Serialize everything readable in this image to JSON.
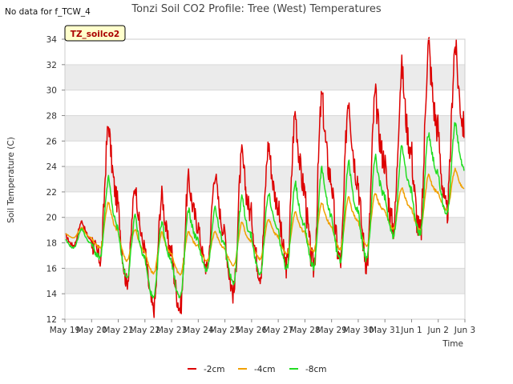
{
  "header": {
    "no_data_note": "No data for f_TCW_4",
    "title": "Tonzi Soil CO2 Profile: Tree (West) Temperatures",
    "badge": "TZ_soilco2"
  },
  "colors": {
    "background_band": "#ebebeb",
    "gridline": "#d9d9d9",
    "axis": "#888888",
    "badge_fill": "#ffffcc",
    "badge_border": "#000000",
    "badge_text": "#aa0000"
  },
  "chart_data": {
    "type": "line",
    "title": "Tonzi Soil CO2 Profile: Tree (West) Temperatures",
    "xlabel": "Time",
    "ylabel": "Soil Temperature (C)",
    "ylim": [
      12,
      34
    ],
    "yticks": [
      12,
      14,
      16,
      18,
      20,
      22,
      24,
      26,
      28,
      30,
      32,
      34
    ],
    "x_tick_labels": [
      "May 19",
      "May 20",
      "May 21",
      "May 22",
      "May 23",
      "May 24",
      "May 25",
      "May 26",
      "May 27",
      "May 28",
      "May 29",
      "May 30",
      "May 31",
      "Jun 1",
      "Jun 2",
      "Jun 3"
    ],
    "xlim_days": [
      0,
      15
    ],
    "grid": true,
    "legend_placement": "bottom-center",
    "series": [
      {
        "name": "-2cm",
        "color": "#dd0000",
        "daily_min": [
          17.8,
          16.8,
          14.9,
          12.8,
          12.9,
          16.0,
          14.1,
          15.6,
          16.2,
          16.1,
          16.5,
          16.5,
          19.3,
          18.6,
          20.3
        ],
        "daily_max": [
          19.7,
          27.3,
          22.5,
          21.8,
          23.0,
          23.5,
          24.9,
          25.8,
          28.3,
          29.5,
          29.6,
          29.6,
          31.8,
          33.7,
          33.6
        ]
      },
      {
        "name": "-4cm",
        "color": "#f0a000",
        "daily_min": [
          18.4,
          17.6,
          16.6,
          15.6,
          15.5,
          16.6,
          16.2,
          16.7,
          17.1,
          17.3,
          17.5,
          17.8,
          19.1,
          19.0,
          20.6
        ],
        "daily_max": [
          19.2,
          21.2,
          19.1,
          18.8,
          18.9,
          18.9,
          19.6,
          19.9,
          20.4,
          21.2,
          21.6,
          21.9,
          22.4,
          23.3,
          23.8
        ]
      },
      {
        "name": "-8cm",
        "color": "#22dd22",
        "daily_min": [
          17.6,
          16.8,
          15.2,
          13.6,
          13.6,
          15.8,
          14.9,
          15.5,
          16.0,
          16.1,
          16.6,
          16.7,
          18.5,
          18.7,
          20.2
        ],
        "daily_max": [
          19.1,
          23.1,
          20.1,
          19.7,
          20.6,
          20.8,
          21.6,
          22.0,
          22.8,
          23.8,
          24.3,
          24.8,
          25.6,
          26.7,
          27.4
        ]
      }
    ]
  }
}
